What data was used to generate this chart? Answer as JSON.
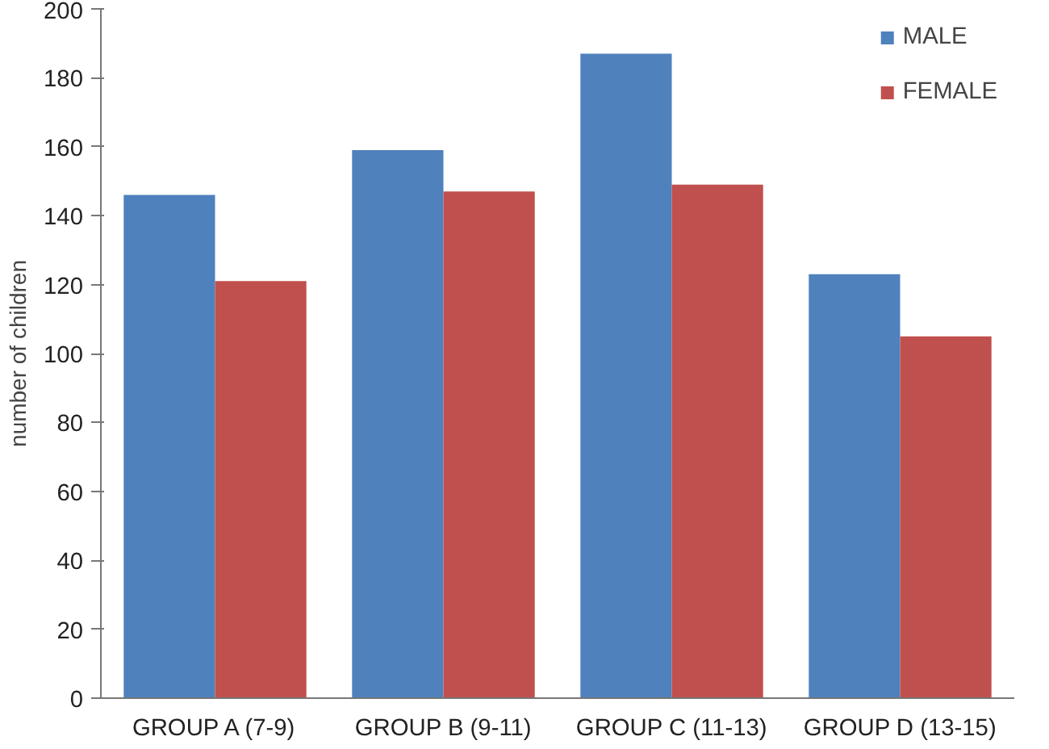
{
  "chart_data": {
    "type": "bar",
    "ylabel": "number of children",
    "categories": [
      "GROUP A (7-9)",
      "GROUP B (9-11)",
      "GROUP C (11-13)",
      "GROUP D (13-15)"
    ],
    "series": [
      {
        "name": "MALE",
        "color": "#4f81bd",
        "values": [
          146,
          159,
          187,
          123
        ]
      },
      {
        "name": "FEMALE",
        "color": "#c0504d",
        "values": [
          121,
          147,
          149,
          105
        ]
      }
    ],
    "ylim": [
      0,
      200
    ],
    "yticks": [
      0,
      20,
      40,
      60,
      80,
      100,
      120,
      140,
      160,
      180,
      200
    ],
    "grid": false,
    "legend": "top right"
  }
}
